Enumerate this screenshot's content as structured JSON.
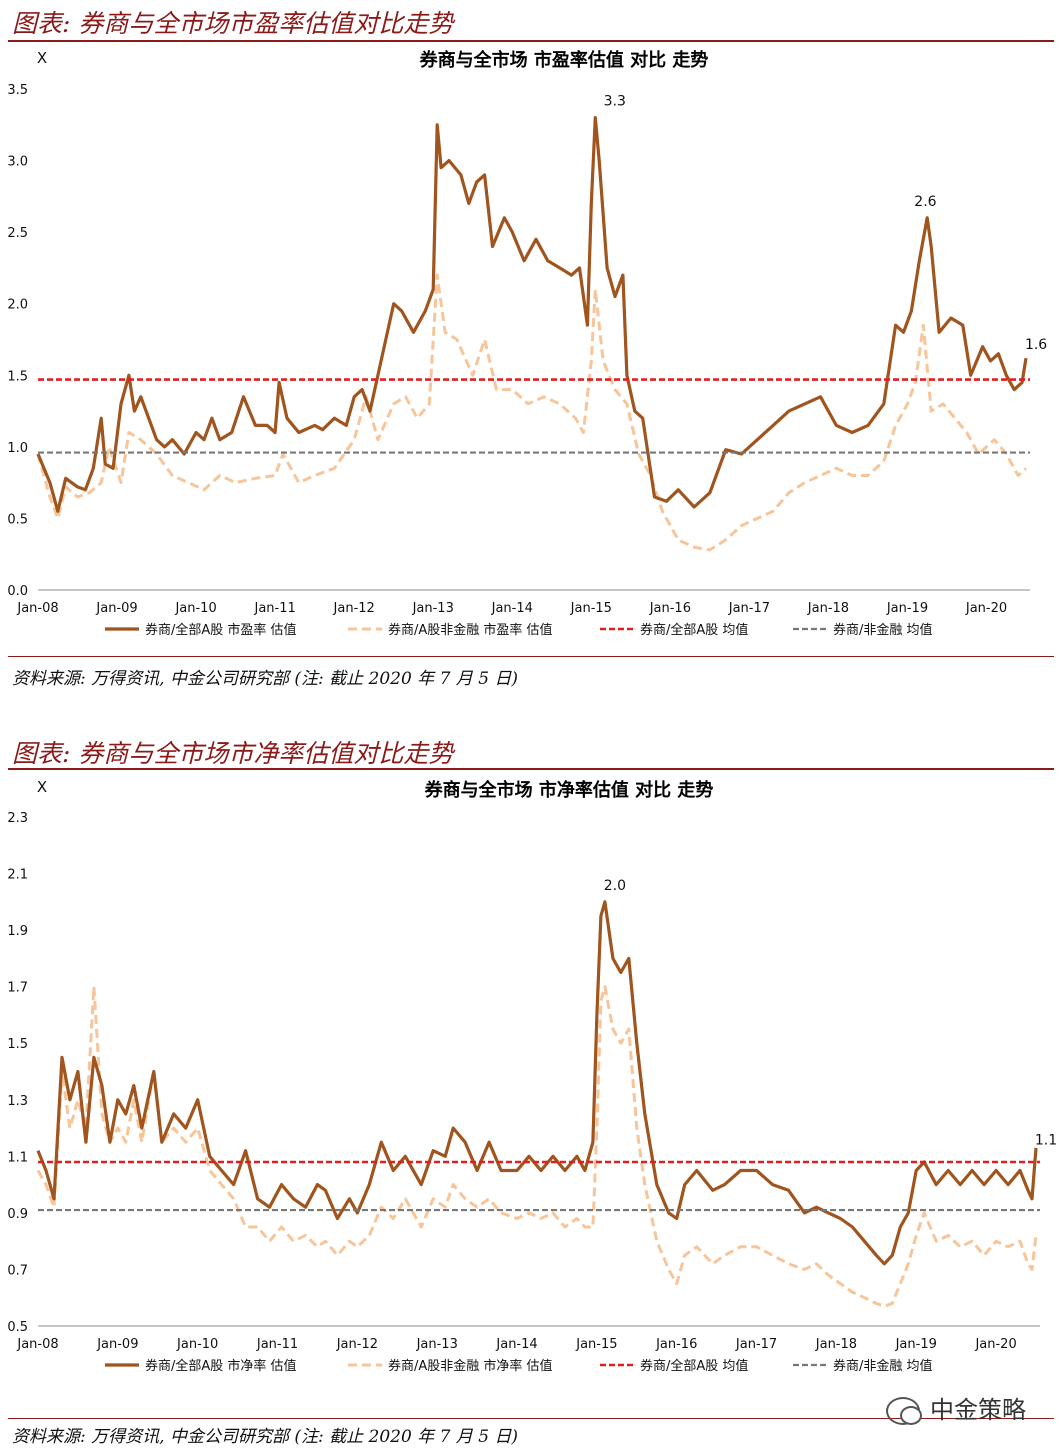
{
  "panels": [
    {
      "figure_title": "图表: 券商与全市场市盈率估值对比走势",
      "source": "资料来源: 万得资讯, 中金公司研究部 (注: 截止 2020 年 7 月 5 日)"
    },
    {
      "figure_title": "图表: 券商与全市场市净率估值对比走势",
      "source": "资料来源: 万得资讯, 中金公司研究部 (注: 截止 2020 年 7 月 5 日)"
    }
  ],
  "watermark": "中金策略",
  "colors": {
    "main": "#a0541e",
    "light": "#f6c59a",
    "red": "#e02020",
    "gray": "#777777",
    "accent": "#8b1a1a"
  },
  "chart_data": [
    {
      "type": "line",
      "title": "券商与全市场 市盈率估值 对比 走势",
      "ylabel": "X",
      "ylim": [
        0.0,
        3.5
      ],
      "yticks": [
        "0.0",
        "0.5",
        "1.0",
        "1.5",
        "2.0",
        "2.5",
        "3.0",
        "3.5"
      ],
      "xlim": [
        2008.0,
        2020.55
      ],
      "xticks": [
        "Jan-08",
        "Jan-09",
        "Jan-10",
        "Jan-11",
        "Jan-12",
        "Jan-13",
        "Jan-14",
        "Jan-15",
        "Jan-16",
        "Jan-17",
        "Jan-18",
        "Jan-19",
        "Jan-20"
      ],
      "series": [
        {
          "name": "券商/全部A股 市盈率 估值",
          "style": "solid",
          "x": [
            2008.0,
            2008.15,
            2008.25,
            2008.35,
            2008.5,
            2008.6,
            2008.7,
            2008.8,
            2008.85,
            2008.95,
            2009.05,
            2009.15,
            2009.22,
            2009.3,
            2009.4,
            2009.5,
            2009.6,
            2009.7,
            2009.85,
            2010.0,
            2010.1,
            2010.2,
            2010.3,
            2010.45,
            2010.6,
            2010.75,
            2010.9,
            2011.0,
            2011.05,
            2011.15,
            2011.3,
            2011.5,
            2011.6,
            2011.75,
            2011.9,
            2012.0,
            2012.1,
            2012.2,
            2012.3,
            2012.5,
            2012.6,
            2012.75,
            2012.9,
            2013.0,
            2013.05,
            2013.1,
            2013.2,
            2013.35,
            2013.45,
            2013.55,
            2013.65,
            2013.75,
            2013.9,
            2014.0,
            2014.15,
            2014.3,
            2014.45,
            2014.6,
            2014.75,
            2014.85,
            2014.95,
            2015.0,
            2015.05,
            2015.1,
            2015.2,
            2015.3,
            2015.4,
            2015.45,
            2015.55,
            2015.65,
            2015.8,
            2015.95,
            2016.1,
            2016.3,
            2016.5,
            2016.7,
            2016.9,
            2017.1,
            2017.3,
            2017.5,
            2017.7,
            2017.9,
            2018.1,
            2018.3,
            2018.5,
            2018.7,
            2018.85,
            2018.95,
            2019.05,
            2019.15,
            2019.25,
            2019.3,
            2019.4,
            2019.55,
            2019.7,
            2019.8,
            2019.95,
            2020.05,
            2020.15,
            2020.25,
            2020.35,
            2020.45,
            2020.5
          ],
          "y": [
            0.95,
            0.75,
            0.55,
            0.78,
            0.72,
            0.7,
            0.85,
            1.2,
            0.88,
            0.85,
            1.3,
            1.5,
            1.25,
            1.35,
            1.2,
            1.05,
            1.0,
            1.05,
            0.95,
            1.1,
            1.05,
            1.2,
            1.05,
            1.1,
            1.35,
            1.15,
            1.15,
            1.1,
            1.45,
            1.2,
            1.1,
            1.15,
            1.12,
            1.2,
            1.15,
            1.35,
            1.4,
            1.25,
            1.5,
            2.0,
            1.95,
            1.8,
            1.95,
            2.1,
            3.25,
            2.95,
            3.0,
            2.9,
            2.7,
            2.85,
            2.9,
            2.4,
            2.6,
            2.5,
            2.3,
            2.45,
            2.3,
            2.25,
            2.2,
            2.25,
            1.85,
            2.7,
            3.3,
            3.0,
            2.25,
            2.05,
            2.2,
            1.5,
            1.25,
            1.2,
            0.65,
            0.62,
            0.7,
            0.58,
            0.68,
            0.98,
            0.95,
            1.05,
            1.15,
            1.25,
            1.3,
            1.35,
            1.15,
            1.1,
            1.15,
            1.3,
            1.85,
            1.8,
            1.95,
            2.3,
            2.6,
            2.4,
            1.8,
            1.9,
            1.85,
            1.5,
            1.7,
            1.6,
            1.65,
            1.5,
            1.4,
            1.45,
            1.62
          ]
        },
        {
          "name": "券商/A股非金融 市盈率 估值",
          "style": "dashed",
          "x": [
            2008.0,
            2008.15,
            2008.25,
            2008.35,
            2008.5,
            2008.65,
            2008.8,
            2008.9,
            2009.05,
            2009.15,
            2009.3,
            2009.5,
            2009.7,
            2009.9,
            2010.1,
            2010.3,
            2010.5,
            2010.75,
            2011.0,
            2011.1,
            2011.3,
            2011.5,
            2011.75,
            2012.0,
            2012.15,
            2012.3,
            2012.5,
            2012.65,
            2012.8,
            2012.95,
            2013.05,
            2013.15,
            2013.3,
            2013.5,
            2013.65,
            2013.8,
            2014.0,
            2014.2,
            2014.4,
            2014.6,
            2014.8,
            2014.9,
            2015.0,
            2015.05,
            2015.15,
            2015.3,
            2015.45,
            2015.6,
            2015.75,
            2015.9,
            2016.1,
            2016.3,
            2016.5,
            2016.7,
            2016.9,
            2017.1,
            2017.3,
            2017.5,
            2017.7,
            2017.9,
            2018.1,
            2018.3,
            2018.5,
            2018.7,
            2018.85,
            2019.0,
            2019.1,
            2019.2,
            2019.3,
            2019.45,
            2019.6,
            2019.75,
            2019.9,
            2020.1,
            2020.25,
            2020.4,
            2020.5
          ],
          "y": [
            0.95,
            0.65,
            0.5,
            0.72,
            0.65,
            0.68,
            0.75,
            1.0,
            0.75,
            1.1,
            1.05,
            0.95,
            0.8,
            0.75,
            0.7,
            0.8,
            0.75,
            0.78,
            0.8,
            0.95,
            0.75,
            0.8,
            0.85,
            1.05,
            1.35,
            1.05,
            1.3,
            1.35,
            1.2,
            1.3,
            2.2,
            1.8,
            1.75,
            1.5,
            1.75,
            1.4,
            1.4,
            1.3,
            1.35,
            1.3,
            1.2,
            1.1,
            1.6,
            2.1,
            1.6,
            1.4,
            1.3,
            0.95,
            0.8,
            0.55,
            0.35,
            0.3,
            0.28,
            0.35,
            0.45,
            0.5,
            0.55,
            0.68,
            0.75,
            0.8,
            0.85,
            0.8,
            0.8,
            0.9,
            1.15,
            1.3,
            1.45,
            1.85,
            1.25,
            1.3,
            1.2,
            1.1,
            0.95,
            1.05,
            0.95,
            0.8,
            0.85
          ]
        },
        {
          "name": "券商/全部A股 均值",
          "style": "red-dashed",
          "constant": 1.47
        },
        {
          "name": "券商/非金融 均值",
          "style": "gray-dashed",
          "constant": 0.96
        }
      ],
      "annotations": [
        {
          "x": 2015.12,
          "y": 3.3,
          "text": "3.3"
        },
        {
          "x": 2019.05,
          "y": 2.6,
          "text": "2.6"
        },
        {
          "x": 2020.45,
          "y": 1.6,
          "text": "1.6"
        }
      ]
    },
    {
      "type": "line",
      "title": "券商与全市场 市净率估值 对比 走势",
      "ylabel": "X",
      "ylim": [
        0.5,
        2.3
      ],
      "yticks": [
        "0.5",
        "0.7",
        "0.9",
        "1.1",
        "1.3",
        "1.5",
        "1.7",
        "1.9",
        "2.1",
        "2.3"
      ],
      "xlim": [
        2008.0,
        2020.55
      ],
      "xticks": [
        "Jan-08",
        "Jan-09",
        "Jan-10",
        "Jan-11",
        "Jan-12",
        "Jan-13",
        "Jan-14",
        "Jan-15",
        "Jan-16",
        "Jan-17",
        "Jan-18",
        "Jan-19",
        "Jan-20"
      ],
      "series": [
        {
          "name": "券商/全部A股 市净率 估值",
          "style": "solid",
          "x": [
            2008.0,
            2008.1,
            2008.2,
            2008.3,
            2008.4,
            2008.5,
            2008.6,
            2008.7,
            2008.8,
            2008.9,
            2009.0,
            2009.1,
            2009.2,
            2009.3,
            2009.45,
            2009.55,
            2009.7,
            2009.85,
            2010.0,
            2010.15,
            2010.3,
            2010.45,
            2010.6,
            2010.75,
            2010.9,
            2011.05,
            2011.2,
            2011.35,
            2011.5,
            2011.6,
            2011.75,
            2011.9,
            2012.0,
            2012.15,
            2012.3,
            2012.45,
            2012.6,
            2012.8,
            2012.95,
            2013.1,
            2013.2,
            2013.35,
            2013.5,
            2013.65,
            2013.8,
            2014.0,
            2014.15,
            2014.3,
            2014.45,
            2014.6,
            2014.75,
            2014.85,
            2014.95,
            2015.0,
            2015.05,
            2015.1,
            2015.2,
            2015.3,
            2015.4,
            2015.5,
            2015.6,
            2015.75,
            2015.9,
            2016.0,
            2016.1,
            2016.25,
            2016.45,
            2016.6,
            2016.8,
            2017.0,
            2017.2,
            2017.4,
            2017.6,
            2017.75,
            2017.9,
            2018.05,
            2018.2,
            2018.35,
            2018.5,
            2018.6,
            2018.7,
            2018.8,
            2018.9,
            2019.0,
            2019.1,
            2019.25,
            2019.4,
            2019.55,
            2019.7,
            2019.85,
            2020.0,
            2020.15,
            2020.3,
            2020.4,
            2020.45,
            2020.5
          ],
          "y": [
            1.12,
            1.05,
            0.95,
            1.45,
            1.3,
            1.4,
            1.15,
            1.45,
            1.35,
            1.15,
            1.3,
            1.25,
            1.35,
            1.2,
            1.4,
            1.15,
            1.25,
            1.2,
            1.3,
            1.1,
            1.05,
            1.0,
            1.12,
            0.95,
            0.92,
            1.0,
            0.95,
            0.92,
            1.0,
            0.98,
            0.88,
            0.95,
            0.9,
            1.0,
            1.15,
            1.05,
            1.1,
            1.0,
            1.12,
            1.1,
            1.2,
            1.15,
            1.05,
            1.15,
            1.05,
            1.05,
            1.1,
            1.05,
            1.1,
            1.05,
            1.1,
            1.05,
            1.15,
            1.6,
            1.95,
            2.0,
            1.8,
            1.75,
            1.8,
            1.5,
            1.25,
            1.0,
            0.9,
            0.88,
            1.0,
            1.05,
            0.98,
            1.0,
            1.05,
            1.05,
            1.0,
            0.98,
            0.9,
            0.92,
            0.9,
            0.88,
            0.85,
            0.8,
            0.75,
            0.72,
            0.75,
            0.85,
            0.9,
            1.05,
            1.08,
            1.0,
            1.05,
            1.0,
            1.05,
            1.0,
            1.05,
            1.0,
            1.05,
            0.98,
            0.95,
            1.13
          ]
        },
        {
          "name": "券商/A股非金融 市净率 估值",
          "style": "dashed",
          "x": [
            2008.0,
            2008.1,
            2008.2,
            2008.3,
            2008.4,
            2008.5,
            2008.6,
            2008.7,
            2008.8,
            2008.9,
            2009.0,
            2009.1,
            2009.2,
            2009.3,
            2009.45,
            2009.55,
            2009.7,
            2009.85,
            2010.0,
            2010.15,
            2010.3,
            2010.45,
            2010.6,
            2010.75,
            2010.9,
            2011.05,
            2011.2,
            2011.35,
            2011.5,
            2011.6,
            2011.75,
            2011.9,
            2012.0,
            2012.15,
            2012.3,
            2012.45,
            2012.6,
            2012.8,
            2012.95,
            2013.1,
            2013.2,
            2013.35,
            2013.5,
            2013.65,
            2013.8,
            2014.0,
            2014.15,
            2014.3,
            2014.45,
            2014.6,
            2014.75,
            2014.85,
            2014.95,
            2015.0,
            2015.05,
            2015.1,
            2015.2,
            2015.3,
            2015.4,
            2015.5,
            2015.6,
            2015.75,
            2015.9,
            2016.0,
            2016.1,
            2016.25,
            2016.45,
            2016.6,
            2016.8,
            2017.0,
            2017.2,
            2017.4,
            2017.6,
            2017.75,
            2017.9,
            2018.05,
            2018.2,
            2018.35,
            2018.5,
            2018.6,
            2018.7,
            2018.8,
            2018.9,
            2019.0,
            2019.1,
            2019.25,
            2019.4,
            2019.55,
            2019.7,
            2019.85,
            2020.0,
            2020.15,
            2020.3,
            2020.4,
            2020.45,
            2020.5
          ],
          "y": [
            1.05,
            1.0,
            0.92,
            1.4,
            1.2,
            1.3,
            1.2,
            1.7,
            1.25,
            1.15,
            1.2,
            1.15,
            1.3,
            1.15,
            1.4,
            1.15,
            1.2,
            1.15,
            1.2,
            1.05,
            1.0,
            0.95,
            0.85,
            0.85,
            0.8,
            0.85,
            0.8,
            0.82,
            0.78,
            0.8,
            0.75,
            0.8,
            0.78,
            0.82,
            0.92,
            0.88,
            0.95,
            0.85,
            0.95,
            0.92,
            1.0,
            0.95,
            0.92,
            0.95,
            0.9,
            0.88,
            0.9,
            0.88,
            0.9,
            0.85,
            0.88,
            0.85,
            0.85,
            1.2,
            1.65,
            1.7,
            1.55,
            1.5,
            1.55,
            1.2,
            1.0,
            0.8,
            0.7,
            0.65,
            0.75,
            0.78,
            0.72,
            0.75,
            0.78,
            0.78,
            0.75,
            0.72,
            0.7,
            0.72,
            0.68,
            0.65,
            0.62,
            0.6,
            0.58,
            0.57,
            0.58,
            0.65,
            0.72,
            0.82,
            0.9,
            0.8,
            0.82,
            0.78,
            0.8,
            0.75,
            0.8,
            0.78,
            0.8,
            0.72,
            0.7,
            0.82
          ]
        },
        {
          "name": "券商/全部A股 均值",
          "style": "red-dashed",
          "constant": 1.08
        },
        {
          "name": "券商/非金融 均值",
          "style": "gray-dashed",
          "constant": 0.91
        }
      ],
      "annotations": [
        {
          "x": 2015.05,
          "y": 2.0,
          "text": "2.0"
        },
        {
          "x": 2020.45,
          "y": 1.1,
          "text": "1.1"
        }
      ]
    }
  ]
}
